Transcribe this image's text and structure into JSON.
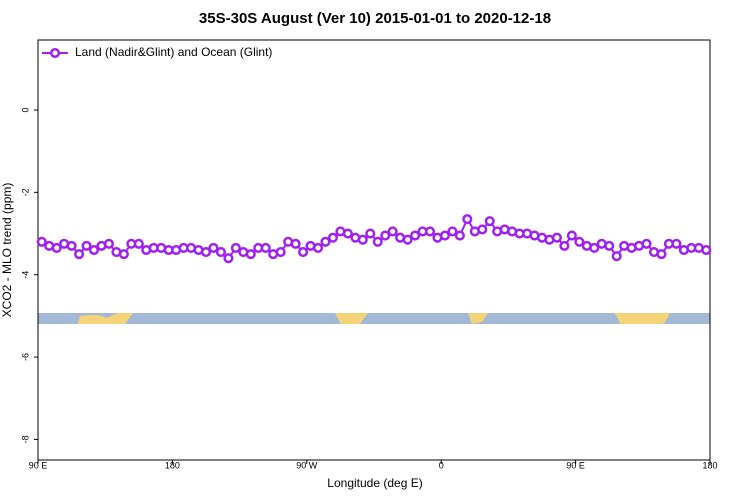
{
  "chart_data": {
    "type": "line",
    "title": "35S-30S August (Ver 10)   2015-01-01 to 2020-12-18",
    "x_label": "Longitude (deg E)",
    "y_label": "XCO2 - MLO trend (ppm)",
    "xlim": [
      90,
      540
    ],
    "xticks": [
      {
        "value": 90,
        "label": "90 E"
      },
      180,
      {
        "value": 270,
        "label": "90 W"
      },
      {
        "value": 360,
        "label": "0"
      },
      {
        "value": 450,
        "label": "90 E"
      },
      {
        "value": 540,
        "label": "180"
      }
    ],
    "ylim": [
      -8.5,
      1.7
    ],
    "yticks": [
      0,
      -2,
      -4,
      -6,
      -8
    ],
    "legend": "top-left",
    "x": [
      92.5,
      97.5,
      102.5,
      107.5,
      112.5,
      117.5,
      122.5,
      127.5,
      132.5,
      137.5,
      142.5,
      147.5,
      152.5,
      157.5,
      162.5,
      167.5,
      172.5,
      177.5,
      182.5,
      187.5,
      192.5,
      197.5,
      202.5,
      207.5,
      212.5,
      217.5,
      222.5,
      227.5,
      232.5,
      237.5,
      242.5,
      247.5,
      252.5,
      257.5,
      262.5,
      267.5,
      272.5,
      277.5,
      282.5,
      287.5,
      292.5,
      297.5,
      302.5,
      307.5,
      312.5,
      317.5,
      322.5,
      327.5,
      332.5,
      337.5,
      342.5,
      347.5,
      352.5,
      357.5,
      362.5,
      367.5,
      372.5,
      377.5,
      382.5,
      387.5,
      392.5,
      397.5,
      402.5,
      407.5,
      412.5,
      417.5,
      422.5,
      427.5,
      432.5,
      437.5,
      442.5,
      447.5,
      452.5,
      457.5,
      462.5,
      467.5,
      472.5,
      477.5,
      482.5,
      487.5,
      492.5,
      497.5,
      502.5,
      507.5,
      512.5,
      517.5,
      522.5,
      527.5,
      532.5,
      537.5
    ],
    "series": [
      {
        "name": "Land (Nadir&Glint) and Ocean (Glint)",
        "color": "#a020f0",
        "values": [
          -3.2,
          -3.3,
          -3.35,
          -3.25,
          -3.3,
          -3.5,
          -3.3,
          -3.4,
          -3.3,
          -3.25,
          -3.45,
          -3.5,
          -3.25,
          -3.25,
          -3.4,
          -3.35,
          -3.35,
          -3.4,
          -3.4,
          -3.35,
          -3.35,
          -3.4,
          -3.45,
          -3.35,
          -3.45,
          -3.6,
          -3.35,
          -3.45,
          -3.5,
          -3.35,
          -3.35,
          -3.5,
          -3.45,
          -3.2,
          -3.25,
          -3.45,
          -3.3,
          -3.35,
          -3.2,
          -3.1,
          -2.95,
          -3.0,
          -3.1,
          -3.15,
          -3.0,
          -3.2,
          -3.05,
          -2.95,
          -3.1,
          -3.15,
          -3.05,
          -2.95,
          -2.95,
          -3.1,
          -3.05,
          -2.95,
          -3.05,
          -2.65,
          -2.95,
          -2.9,
          -2.7,
          -2.95,
          -2.9,
          -2.95,
          -3.0,
          -3.0,
          -3.05,
          -3.1,
          -3.15,
          -3.1,
          -3.3,
          -3.05,
          -3.2,
          -3.3,
          -3.35,
          -3.25,
          -3.3,
          -3.55,
          -3.3,
          -3.35,
          -3.3,
          -3.25,
          -3.45,
          -3.5,
          -3.25,
          -3.25,
          -3.4,
          -3.35,
          -3.35,
          -3.4
        ]
      }
    ]
  }
}
